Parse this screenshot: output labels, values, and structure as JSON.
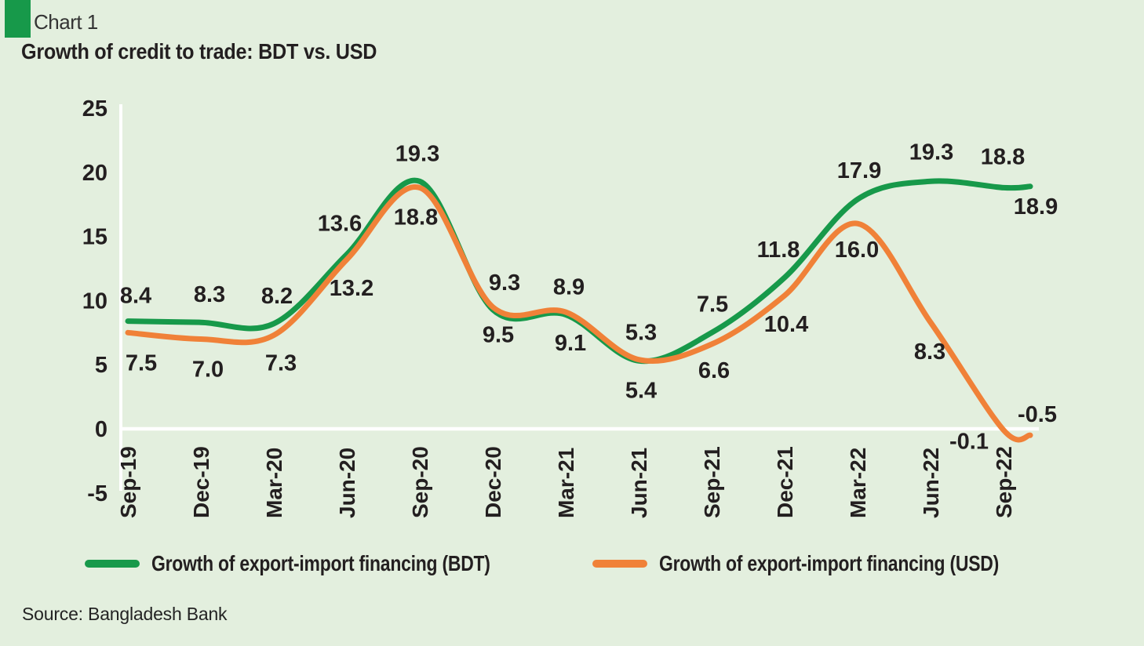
{
  "header": {
    "kicker": "Chart 1",
    "title": "Growth of credit to trade: BDT vs. USD"
  },
  "footer": {
    "source": "Source: Bangladesh Bank"
  },
  "colors": {
    "background": "#e3efde",
    "bdt_line": "#17994a",
    "usd_line": "#f08138",
    "axis_line": "#ffffff",
    "label_text": "#231f20"
  },
  "chart_data": {
    "type": "line",
    "title": "Growth of credit to trade: BDT vs. USD",
    "categories": [
      "Sep-19",
      "Dec-19",
      "Mar-20",
      "Jun-20",
      "Sep-20",
      "Dec-20",
      "Mar-21",
      "Jun-21",
      "Sep-21",
      "Dec-21",
      "Mar-22",
      "Jun-22",
      "Sep-22",
      ""
    ],
    "series": [
      {
        "name": "Growth of export-import financing (BDT)",
        "color_key": "bdt_line",
        "values": [
          8.4,
          8.3,
          8.2,
          13.6,
          19.3,
          9.3,
          8.9,
          5.3,
          7.5,
          11.8,
          17.9,
          19.3,
          18.8,
          18.9
        ]
      },
      {
        "name": "Growth of export-import financing (USD)",
        "color_key": "usd_line",
        "values": [
          7.5,
          7.0,
          7.3,
          13.2,
          18.8,
          9.5,
          9.1,
          5.4,
          6.6,
          10.4,
          16.0,
          8.3,
          -0.1,
          -0.5
        ]
      }
    ],
    "ylim": [
      -5,
      25
    ],
    "yticks": [
      25,
      20,
      15,
      10,
      5,
      0,
      -5
    ],
    "grid": "zero-baseline-only",
    "legend_position": "bottom",
    "data_labels": true
  },
  "legend": {
    "items": [
      {
        "label": "Growth of export-import financing (BDT)"
      },
      {
        "label": "Growth of export-import financing (USD)"
      }
    ]
  }
}
